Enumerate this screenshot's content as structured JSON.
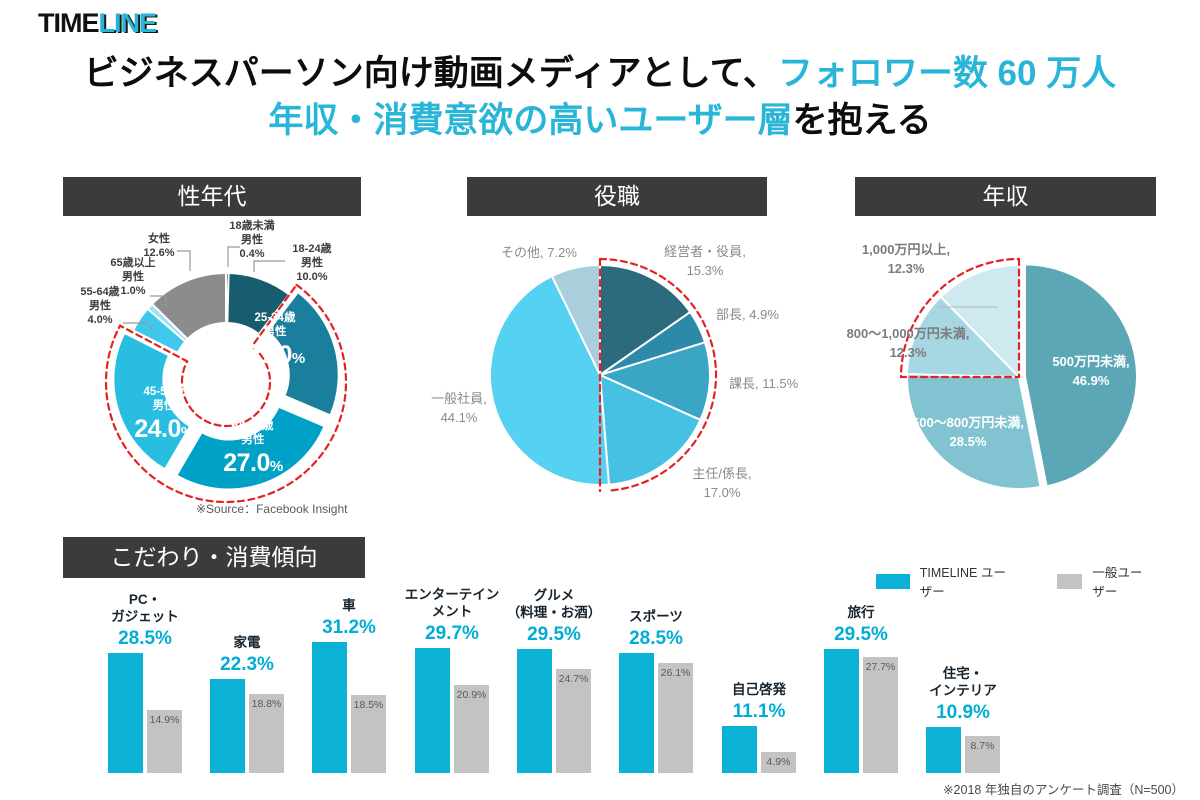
{
  "logo": {
    "part1": "TIME",
    "part2": "LINE"
  },
  "title": {
    "line1_black": "ビジネスパーソン向け動画メディアとして、",
    "line1_cyan": "フォロワー数 60 万人",
    "line2_cyan": "年収・消費意欲の高いユーザー層",
    "line2_black": "を抱える"
  },
  "colors": {
    "accent_cyan": "#29b5d8",
    "header_bg": "#3b3b3b",
    "highlight_dash_red": "#e32222",
    "bar_timeline": "#0cb2d6",
    "bar_general": "#c3c3c3"
  },
  "sections": {
    "age_gender": {
      "header": "性年代",
      "source_note": "※Source：Facebook Insight"
    },
    "job_title": {
      "header": "役職"
    },
    "income": {
      "header": "年収"
    },
    "preferences": {
      "header": "こだわり・消費傾向",
      "footnote": "※2018 年独自のアンケート調査（N=500）",
      "legend": [
        {
          "label": "TIMELINE ユーザー",
          "color": "#0cb2d6"
        },
        {
          "label": "一般ユーザー",
          "color": "#c3c3c3"
        }
      ]
    }
  },
  "chart_data": [
    {
      "id": "age_gender",
      "type": "donut",
      "title": "性年代",
      "slices": [
        {
          "label": "18歳未満\n男性",
          "value": 0.4,
          "value_label": "0.4%",
          "color": "#0b2230",
          "exploded": false
        },
        {
          "label": "18-24歳\n男性",
          "value": 10.0,
          "value_label": "10.0%",
          "color": "#175d6f",
          "exploded": false
        },
        {
          "label": "25-34歳\n男性",
          "value": 21.0,
          "value_label": "21.0%",
          "color": "#1a7f9c",
          "exploded": true
        },
        {
          "label": "35-44歳\n男性",
          "value": 27.0,
          "value_label": "27.0%",
          "color": "#00a1c7",
          "exploded": true
        },
        {
          "label": "45-54歳\n男性",
          "value": 24.0,
          "value_label": "24.0%",
          "color": "#2abde2",
          "exploded": true
        },
        {
          "label": "55-64歳\n男性",
          "value": 4.0,
          "value_label": "4.0%",
          "color": "#3fc8ec",
          "exploded": false
        },
        {
          "label": "65歳以上\n男性",
          "value": 1.0,
          "value_label": "1.0%",
          "color": "#9fe2f6",
          "exploded": false
        },
        {
          "label": "女性",
          "value": 12.6,
          "value_label": "12.6%",
          "color": "#8c8c8c",
          "exploded": false
        }
      ],
      "highlighted_group": [
        "25-34歳男性",
        "35-44歳男性",
        "45-54歳男性"
      ]
    },
    {
      "id": "job_title",
      "type": "pie",
      "title": "役職",
      "slices": [
        {
          "label": "経営者・役員",
          "value": 15.3,
          "value_label": "15.3%",
          "color": "#2c6b7e"
        },
        {
          "label": "部長",
          "value": 4.9,
          "value_label": "4.9%",
          "color": "#2d89a8"
        },
        {
          "label": "課長",
          "value": 11.5,
          "value_label": "11.5%",
          "color": "#3ba5c6"
        },
        {
          "label": "主任/係長",
          "value": 17.0,
          "value_label": "17.0%",
          "color": "#46c1e4"
        },
        {
          "label": "一般社員",
          "value": 44.1,
          "value_label": "44.1%",
          "color": "#55d1f2"
        },
        {
          "label": "その他",
          "value": 7.2,
          "value_label": "7.2%",
          "color": "#aacfdc"
        }
      ],
      "highlighted_group": [
        "経営者・役員",
        "部長",
        "課長",
        "主任/係長"
      ]
    },
    {
      "id": "income",
      "type": "pie",
      "title": "年収",
      "slices": [
        {
          "label": "500万円未満",
          "value": 46.9,
          "value_label": "46.9%",
          "color": "#5ca7b6",
          "exploded": true
        },
        {
          "label": "500～800万円未満",
          "value": 28.5,
          "value_label": "28.5%",
          "color": "#82c3d1",
          "exploded": false
        },
        {
          "label": "800～1,000万円未満",
          "value": 12.3,
          "value_label": "12.3%",
          "color": "#a6d7e2",
          "exploded": false
        },
        {
          "label": "1,000万円以上",
          "value": 12.3,
          "value_label": "12.3%",
          "color": "#cfe9f0",
          "exploded": false
        }
      ],
      "highlighted_group": [
        "800～1,000万円未満",
        "1,000万円以上"
      ]
    },
    {
      "id": "preferences",
      "type": "bar",
      "title": "こだわり・消費傾向",
      "categories": [
        "PC・\nガジェット",
        "家電",
        "車",
        "エンターテイン\nメント",
        "グルメ\n（料理・お酒）",
        "スポーツ",
        "自己啓発",
        "旅行",
        "住宅・\nインテリア"
      ],
      "series": [
        {
          "name": "TIMELINE ユーザー",
          "color": "#0cb2d6",
          "values": [
            28.5,
            22.3,
            31.2,
            29.7,
            29.5,
            28.5,
            11.1,
            29.5,
            10.9
          ]
        },
        {
          "name": "一般ユーザー",
          "color": "#c3c3c3",
          "values": [
            14.9,
            18.8,
            18.5,
            20.9,
            24.7,
            26.1,
            4.9,
            27.7,
            8.7
          ]
        }
      ],
      "ylabel": "",
      "ylim": [
        0,
        35
      ],
      "grid": false,
      "legend_position": "top-right"
    }
  ]
}
